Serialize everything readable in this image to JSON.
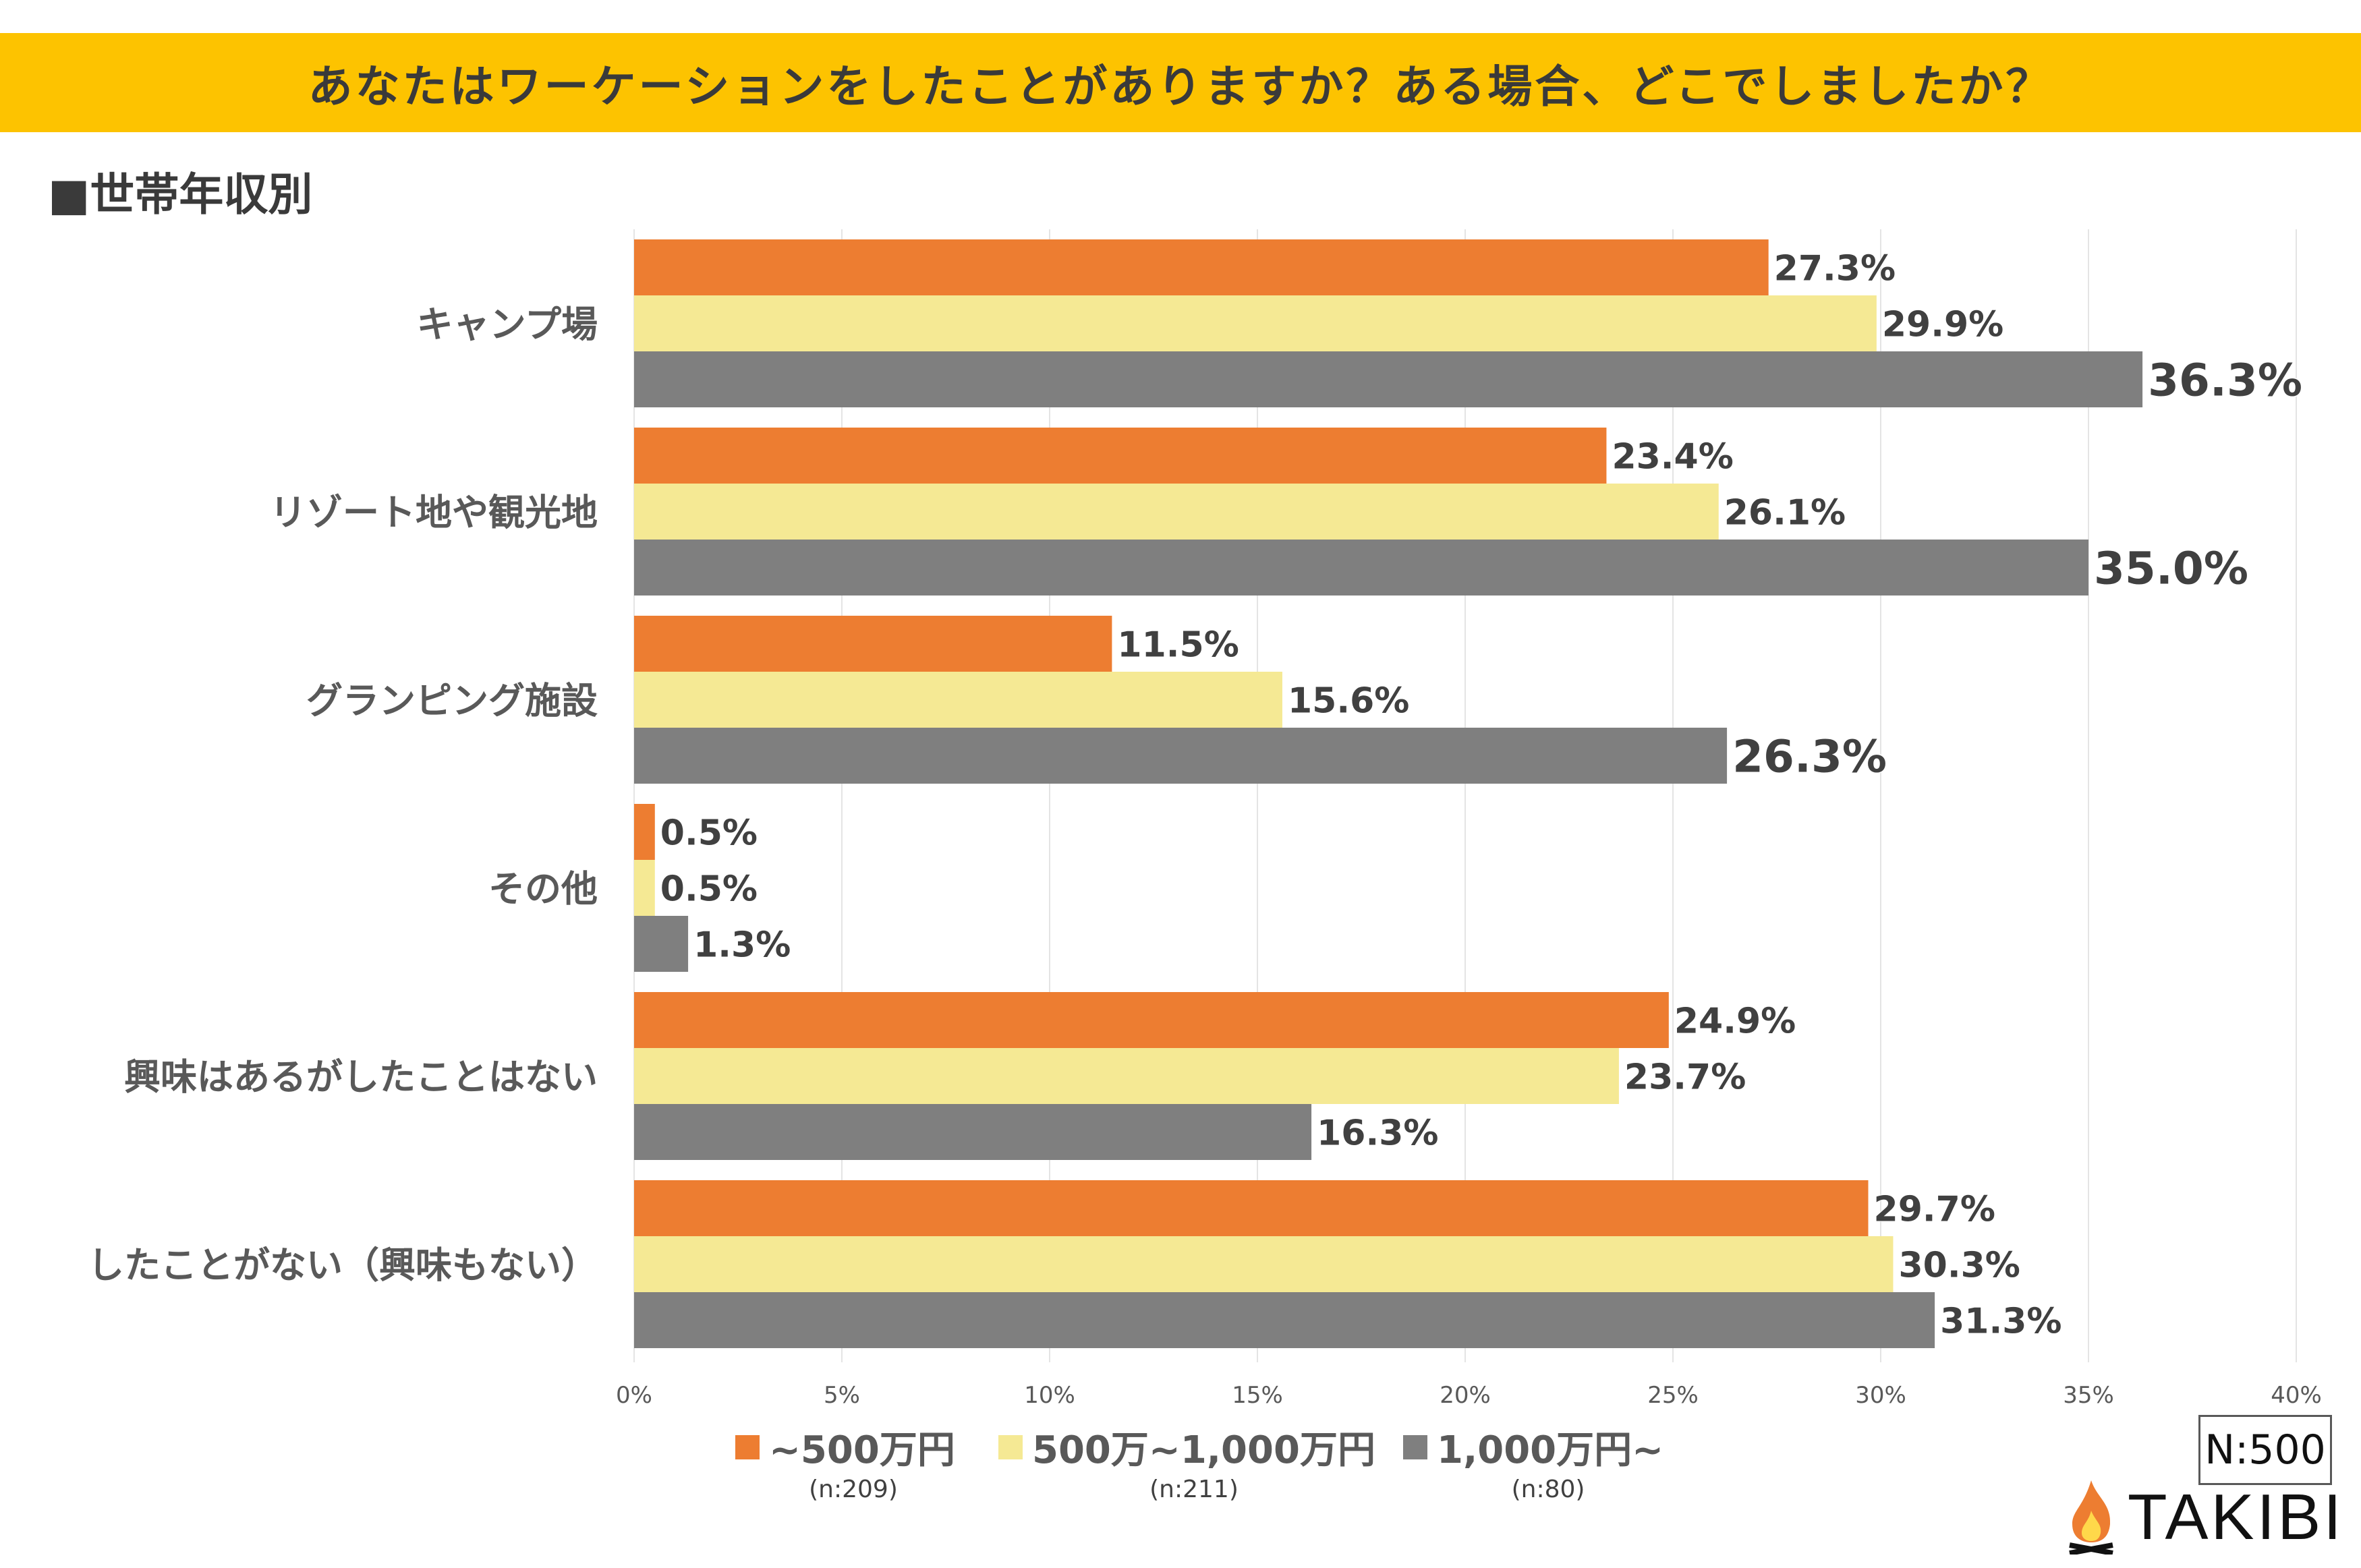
{
  "header": {
    "title": "あなたはワーケーションをしたことがありますか？ある場合、どこでしましたか？"
  },
  "subtitle": "■世帯年収別",
  "sample": "N:500",
  "brand": "TAKIBI",
  "colors": {
    "s0": "#ED7D31",
    "s1": "#F5E994",
    "s2": "#7F7F7F",
    "banner": "#FDC300"
  },
  "chart_data": {
    "type": "bar",
    "orientation": "horizontal",
    "categories": [
      "キャンプ場",
      "リゾート地や観光地",
      "グランピング施設",
      "その他",
      "興味はあるがしたことはない",
      "したことがない（興味もない）"
    ],
    "series": [
      {
        "name": "~500万円",
        "n": "(n:209)",
        "values": [
          27.3,
          23.4,
          11.5,
          0.5,
          24.9,
          29.7
        ]
      },
      {
        "name": "500万~1,000万円",
        "n": "(n:211)",
        "values": [
          29.9,
          26.1,
          15.6,
          0.5,
          23.7,
          30.3
        ]
      },
      {
        "name": "1,000万円~",
        "n": "(n:80)",
        "values": [
          36.3,
          35.0,
          26.3,
          1.3,
          16.3,
          31.3
        ]
      }
    ],
    "value_labels": [
      [
        "27.3%",
        "23.4%",
        "11.5%",
        "0.5%",
        "24.9%",
        "29.7%"
      ],
      [
        "29.9%",
        "26.1%",
        "15.6%",
        "0.5%",
        "23.7%",
        "30.3%"
      ],
      [
        "36.3%",
        "35.0%",
        "26.3%",
        "1.3%",
        "16.3%",
        "31.3%"
      ]
    ],
    "xlim": [
      0,
      40
    ],
    "xticks": [
      "0%",
      "5%",
      "10%",
      "15%",
      "20%",
      "25%",
      "30%",
      "35%",
      "40%"
    ],
    "grid": true,
    "legend": "bottom"
  }
}
